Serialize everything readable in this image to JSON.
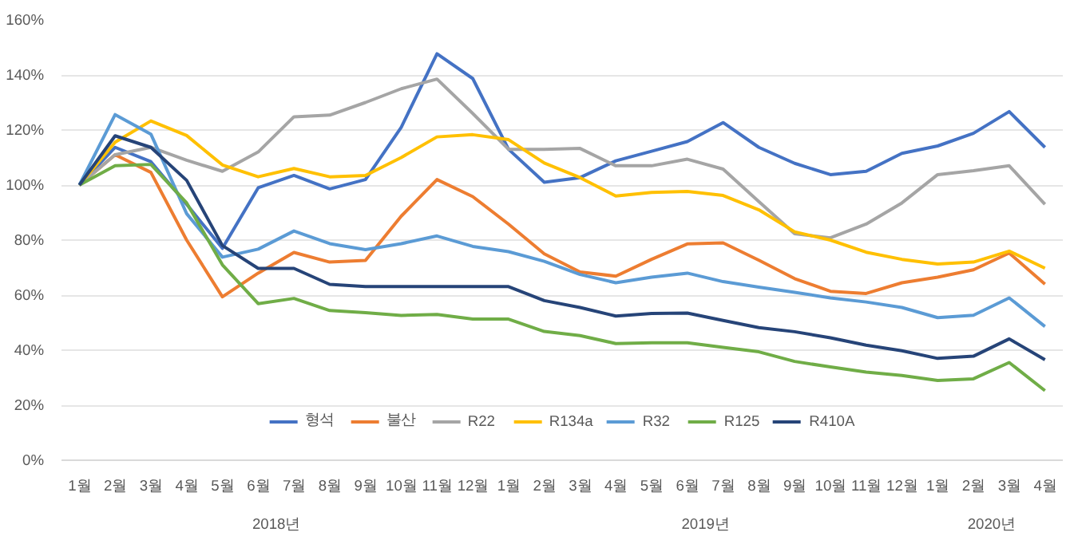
{
  "chart_data": {
    "type": "line",
    "categories": [
      "1월",
      "2월",
      "3월",
      "4월",
      "5월",
      "6월",
      "7월",
      "8월",
      "9월",
      "10월",
      "11월",
      "12월",
      "1월",
      "2월",
      "3월",
      "4월",
      "5월",
      "6월",
      "7월",
      "8월",
      "9월",
      "10월",
      "11월",
      "12월",
      "1월",
      "2월",
      "3월",
      "4월"
    ],
    "series": [
      {
        "name": "형석",
        "color": "#4472c4",
        "values": [
          100,
          113.7,
          108.5,
          93,
          77,
          99,
          103.5,
          98.6,
          102,
          121,
          147.7,
          138.7,
          113,
          101,
          102.7,
          108.8,
          112.3,
          115.8,
          122.7,
          113.7,
          107.9,
          103.8,
          105,
          111.5,
          114.2,
          118.8,
          126.7,
          113.7
        ]
      },
      {
        "name": "불산",
        "color": "#ed7d31",
        "values": [
          100,
          111,
          104.6,
          80,
          59.4,
          68,
          75.5,
          72,
          72.6,
          88.7,
          102,
          95.8,
          85.8,
          75,
          68.4,
          66.9,
          73,
          78.6,
          79,
          72.7,
          66,
          61.4,
          60.6,
          64.5,
          66.5,
          69.2,
          75.3,
          64
        ]
      },
      {
        "name": "R22",
        "color": "#a5a5a5",
        "values": [
          100,
          111,
          113.7,
          109,
          105,
          112,
          124.8,
          125.4,
          130,
          135,
          138.5,
          126,
          113,
          113,
          113.3,
          107,
          107,
          109.4,
          105.8,
          94,
          82.3,
          80.8,
          85.8,
          93.5,
          103.8,
          105.2,
          107,
          93
        ]
      },
      {
        "name": "R134a",
        "color": "#ffc000",
        "values": [
          100,
          115.6,
          123.3,
          118,
          107.3,
          103,
          106,
          103,
          103.5,
          110,
          117.5,
          118.3,
          116.5,
          108,
          102.7,
          96,
          97.3,
          97.7,
          96.2,
          91,
          83,
          80,
          75.6,
          73,
          71.3,
          72,
          76,
          69.8
        ]
      },
      {
        "name": "R32",
        "color": "#5b9bd5",
        "values": [
          100,
          125.6,
          118.5,
          89.6,
          73.8,
          76.7,
          83.3,
          78.7,
          76.5,
          78.7,
          81.5,
          77.7,
          75.8,
          72.3,
          67.5,
          64.5,
          66.5,
          68,
          64.9,
          62.9,
          61,
          59,
          57.5,
          55.5,
          51.8,
          52.7,
          59,
          48.6
        ]
      },
      {
        "name": "R125",
        "color": "#70ad47",
        "values": [
          100,
          107,
          107.5,
          93.5,
          71,
          56.9,
          58.8,
          54.4,
          53.6,
          52.6,
          53,
          51.3,
          51.3,
          46.8,
          45.3,
          42.4,
          42.7,
          42.7,
          41,
          39.4,
          35.9,
          33.9,
          32,
          30.8,
          29,
          29.6,
          35.5,
          25.3
        ]
      },
      {
        "name": "R410A",
        "color": "#264478",
        "values": [
          100,
          117.9,
          113.7,
          101.7,
          78,
          69.7,
          69.7,
          63.9,
          63.1,
          63.1,
          63.1,
          63.1,
          63.1,
          58,
          55.5,
          52.4,
          53.3,
          53.5,
          50.8,
          48.2,
          46.7,
          44.5,
          41.8,
          39.8,
          37,
          37.8,
          44.1,
          36.5
        ]
      }
    ],
    "ylim": [
      0,
      160
    ],
    "yticks": [
      {
        "value": 0,
        "label": "0%"
      },
      {
        "value": 20,
        "label": "20%"
      },
      {
        "value": 40,
        "label": "40%"
      },
      {
        "value": 60,
        "label": "60%"
      },
      {
        "value": 80,
        "label": "80%"
      },
      {
        "value": 100,
        "label": "100%"
      },
      {
        "value": 120,
        "label": "120%"
      },
      {
        "value": 140,
        "label": "140%"
      },
      {
        "value": 160,
        "label": "160%"
      }
    ],
    "annotations": [
      "2018년",
      "2019년",
      "2020년"
    ],
    "grid": "y",
    "legend": "bottom",
    "marker": "none",
    "line_style": "solid"
  }
}
